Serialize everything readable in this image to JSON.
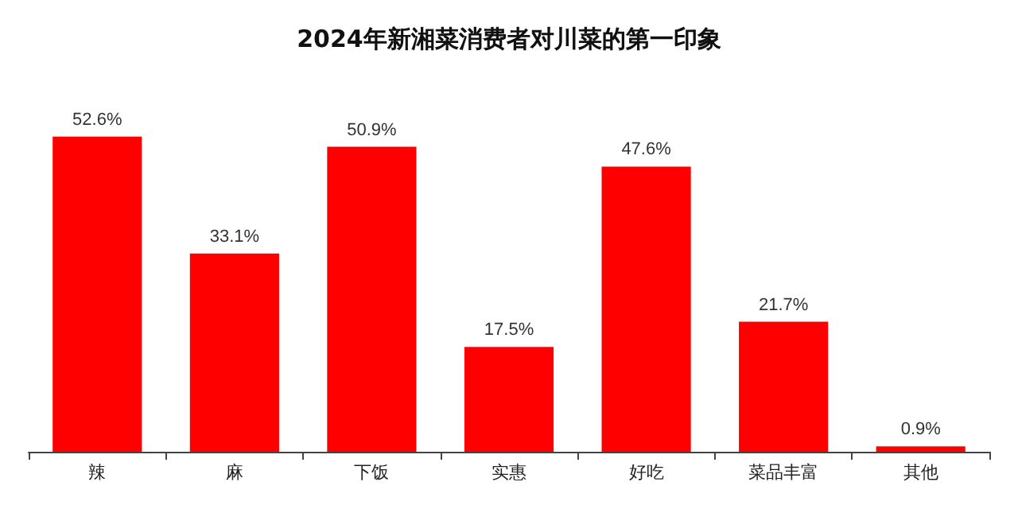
{
  "chart_data": {
    "type": "bar",
    "title": "2024年新湘菜消费者对川菜的第一印象",
    "categories": [
      "辣",
      "麻",
      "下饭",
      "实惠",
      "好吃",
      "菜品丰富",
      "其他"
    ],
    "values": [
      52.6,
      33.1,
      50.9,
      17.5,
      47.6,
      21.7,
      0.9
    ],
    "color": "#ff0000",
    "value_labels": [
      "52.6%",
      "33.1%",
      "50.9%",
      "17.5%",
      "47.6%",
      "21.7%",
      "0.9%"
    ]
  }
}
